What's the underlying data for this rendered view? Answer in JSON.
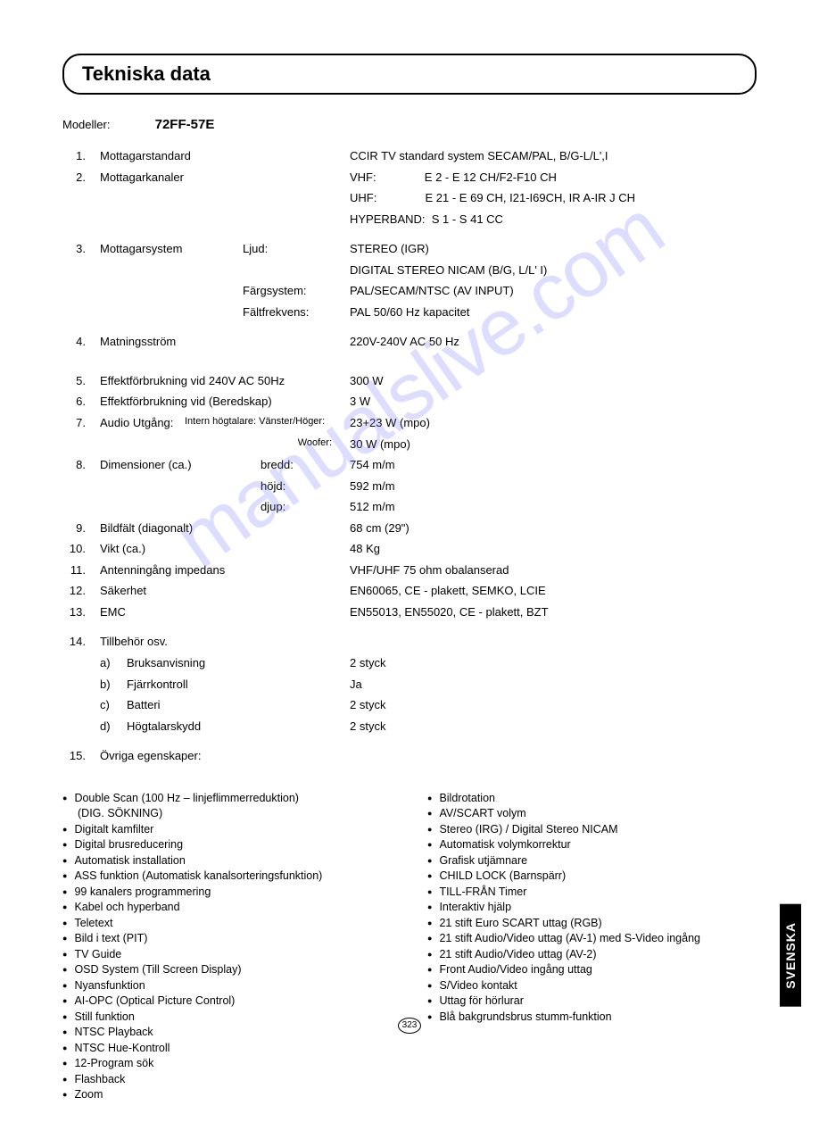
{
  "title": "Tekniska data",
  "model_label": "Modeller:",
  "model_value": "72FF-57E",
  "rows": [
    {
      "n": "1.",
      "label": "Mottagarstandard",
      "val": "CCIR TV standard system SECAM/PAL, B/G-L/L',I"
    },
    {
      "n": "2.",
      "label": "Mottagarkanaler",
      "val": "VHF:               E 2 - E 12 CH/F2-F10 CH"
    },
    {
      "n": "",
      "label": "",
      "val": "UHF:               E 21 - E 69 CH, I21-I69CH, IR A-IR J CH"
    },
    {
      "n": "",
      "label": "",
      "val": "HYPERBAND:  S 1 - S 41 CC"
    }
  ],
  "row3": {
    "n": "3.",
    "label": "Mottagarsystem",
    "subs": [
      {
        "k": "Ljud:",
        "v": "STEREO (IGR)"
      },
      {
        "k": "",
        "v": "DIGITAL STEREO NICAM (B/G, L/L' I)"
      },
      {
        "k": "Färgsystem:",
        "v": "PAL/SECAM/NTSC (AV INPUT)"
      },
      {
        "k": "Fältfrekvens:",
        "v": "PAL 50/60 Hz kapacitet"
      }
    ]
  },
  "row4": {
    "n": "4.",
    "label": "Matningsström",
    "val": "220V-240V AC 50 Hz"
  },
  "row5": {
    "n": "5.",
    "label": "Effektförbrukning vid 240V AC 50Hz",
    "val": "300 W"
  },
  "row6": {
    "n": "6.",
    "label": "Effektförbrukning vid (Beredskap)",
    "val": "3 W"
  },
  "row7": {
    "n": "7.",
    "label": "Audio Utgång:",
    "subs": [
      {
        "k": "Intern högtalare: Vänster/Höger:",
        "v": "23+23 W (mpo)"
      },
      {
        "k": "Woofer:",
        "v": "30 W (mpo)"
      }
    ]
  },
  "row8": {
    "n": "8.",
    "label": "Dimensioner (ca.)",
    "subs": [
      {
        "k": "bredd:",
        "v": "754 m/m"
      },
      {
        "k": "höjd:",
        "v": "592 m/m"
      },
      {
        "k": "djup:",
        "v": "512 m/m"
      }
    ]
  },
  "row9": {
    "n": "9.",
    "label": "Bildfält (diagonalt)",
    "val": "68 cm (29\")"
  },
  "row10": {
    "n": "10.",
    "label": "Vikt (ca.)",
    "val": "48 Kg"
  },
  "row11": {
    "n": "11.",
    "label": "Antenningång impedans",
    "val": "VHF/UHF 75 ohm obalanserad"
  },
  "row12": {
    "n": "12.",
    "label": "Säkerhet",
    "val": "EN60065, CE - plakett, SEMKO, LCIE"
  },
  "row13": {
    "n": "13.",
    "label": "EMC",
    "val": "EN55013, EN55020, CE - plakett, BZT"
  },
  "row14": {
    "n": "14.",
    "label": "Tillbehör osv.",
    "items": [
      {
        "l": "a)",
        "t": "Bruksanvisning",
        "v": "2 styck"
      },
      {
        "l": "b)",
        "t": "Fjärrkontroll",
        "v": "Ja"
      },
      {
        "l": "c)",
        "t": "Batteri",
        "v": "2 styck"
      },
      {
        "l": "d)",
        "t": "Högtalarskydd",
        "v": "2 styck"
      }
    ]
  },
  "row15": {
    "n": "15.",
    "label": "Övriga egenskaper:"
  },
  "features_left": [
    "Double Scan (100 Hz – linjeflimmerreduktion)",
    "__(DIG. SÖKNING)",
    "Digitalt kamfilter",
    "Digital brusreducering",
    "Automatisk installation",
    "ASS funktion (Automatisk kanalsorteringsfunktion)",
    "99 kanalers programmering",
    "Kabel och hyperband",
    "Teletext",
    "Bild i text (PIT)",
    "TV Guide",
    "OSD System (Till Screen Display)",
    "Nyansfunktion",
    "AI-OPC (Optical Picture Control)",
    "Still funktion",
    "NTSC Playback",
    "NTSC Hue-Kontroll",
    "12-Program sök",
    "Flashback",
    "Zoom"
  ],
  "features_right": [
    "Bildrotation",
    "AV/SCART volym",
    "Stereo (IRG) / Digital Stereo NICAM",
    "Automatisk volymkorrektur",
    "Grafisk utjämnare",
    "CHILD LOCK (Barnspärr)",
    "TILL-FRÅN Timer",
    "Interaktiv hjälp",
    "21 stift Euro SCART uttag (RGB)",
    "21 stift Audio/Video uttag (AV-1) med S-Video ingång",
    "21 stift Audio/Video uttag (AV-2)",
    "Front Audio/Video ingång uttag",
    "S/Video kontakt",
    "Uttag för hörlurar",
    "Blå bakgrundsbrus stumm-funktion"
  ],
  "page_number": "323",
  "side_tab": "SVENSKA",
  "watermark": "manualslive.com"
}
